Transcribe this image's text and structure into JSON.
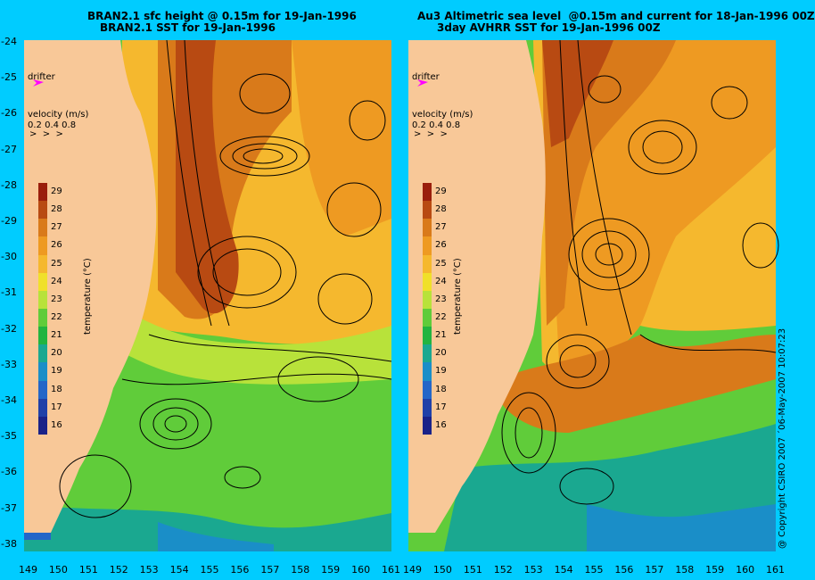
{
  "left_panel": {
    "title_line1": "BRAN2.1 sfc height @ 0.15m for 19-Jan-1996",
    "title_line2": "BRAN2.1 SST for 19-Jan-1996"
  },
  "right_panel": {
    "title_line1": "Au3 Altimetric sea level  @0.15m and current for 18-Jan-1996 00Z",
    "title_line2": "3day AVHRR SST for 19-Jan-1996 00Z"
  },
  "legend": {
    "drifter_label": "drifter",
    "velocity_label": "velocity (m/s)",
    "velocity_scale": "0.2 0.4 0.8",
    "colorbar_title": "temperature (°C)",
    "colorbar_ticks": [
      "29",
      "28",
      "27",
      "26",
      "25",
      "24",
      "23",
      "22",
      "21",
      "20",
      "19",
      "18",
      "17",
      "16"
    ],
    "colorbar_colors": [
      "#9a1e0c",
      "#b84a12",
      "#d97a1a",
      "#ee9a22",
      "#f5b82e",
      "#f0e02a",
      "#b8e23a",
      "#60cc3a",
      "#22b440",
      "#1aa890",
      "#1a8ec8",
      "#2466c8",
      "#2040a8",
      "#1a2288"
    ]
  },
  "axes": {
    "y_ticks": [
      "-24",
      "-25",
      "-26",
      "-27",
      "-28",
      "-29",
      "-30",
      "-31",
      "-32",
      "-33",
      "-34",
      "-35",
      "-36",
      "-37",
      "-38"
    ],
    "x_ticks_left": [
      "149",
      "150",
      "151",
      "152",
      "153",
      "154",
      "155",
      "156",
      "157",
      "158",
      "159",
      "160",
      "161"
    ],
    "x_ticks_right": [
      "149",
      "150",
      "151",
      "152",
      "153",
      "154",
      "155",
      "156",
      "157",
      "158",
      "159",
      "160",
      "161"
    ]
  },
  "copyright": "@ Copyright CSIRO 2007 ´06-May-2007 10:07:23",
  "colors": {
    "background": "#00ccff",
    "land": "#f8c898",
    "drifter": "#ff00ff"
  }
}
